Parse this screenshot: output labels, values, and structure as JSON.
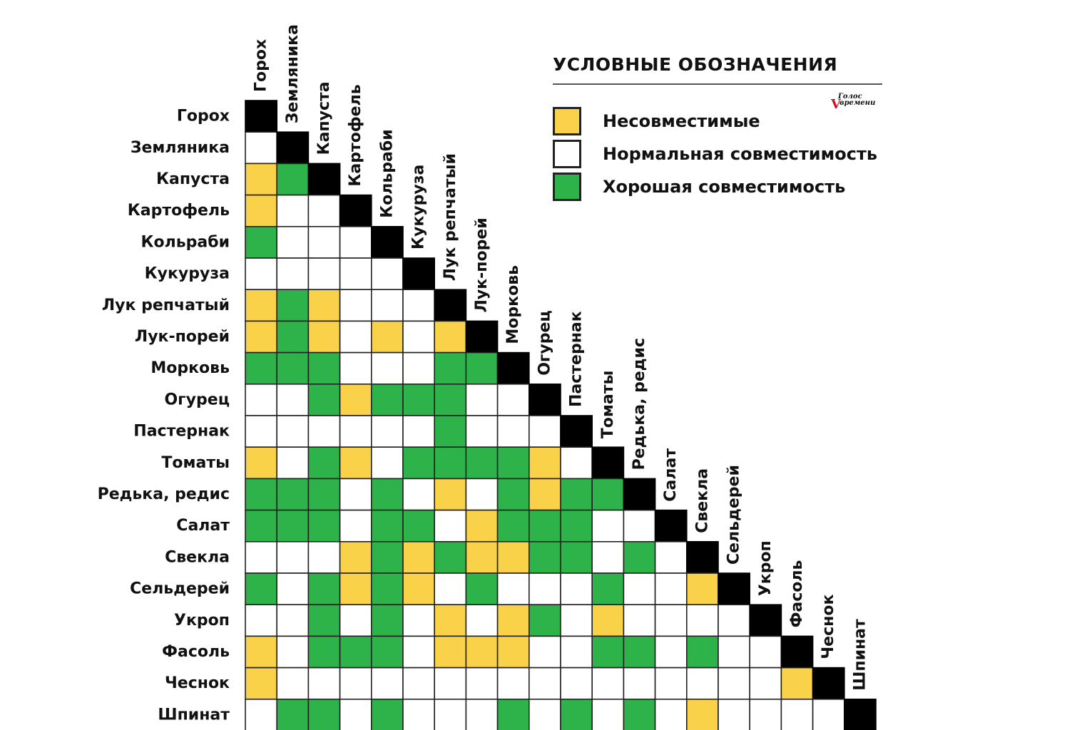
{
  "legend": {
    "title": "УСЛОВНЫЕ ОБОЗНАЧЕНИЯ",
    "items": [
      {
        "code": 1,
        "label": "Несовместимые",
        "color": "#f9d24a"
      },
      {
        "code": 0,
        "label": "Нормальная совместимость",
        "color": "#ffffff"
      },
      {
        "code": 2,
        "label": "Хорошая совместимость",
        "color": "#2db34a"
      }
    ]
  },
  "logo": {
    "line1": "Голос",
    "line2": "времени"
  },
  "chart_data": {
    "type": "heatmap",
    "title": "",
    "crops": [
      "Горох",
      "Земляника",
      "Капуста",
      "Картофель",
      "Кольраби",
      "Кукуруза",
      "Лук репчатый",
      "Лук-порей",
      "Морковь",
      "Огурец",
      "Пастернак",
      "Томаты",
      "Редька, редис",
      "Салат",
      "Свекла",
      "Сельдерей",
      "Укроп",
      "Фасоль",
      "Чеснок",
      "Шпинат"
    ],
    "value_legend": {
      "0": "Нормальная совместимость",
      "1": "Несовместимые",
      "2": "Хорошая совместимость"
    },
    "diagonal_color": "#000000",
    "rows": [
      [],
      [
        0
      ],
      [
        1,
        2
      ],
      [
        1,
        0,
        0
      ],
      [
        2,
        0,
        0,
        0
      ],
      [
        0,
        0,
        0,
        0,
        0
      ],
      [
        1,
        2,
        1,
        0,
        0,
        0
      ],
      [
        1,
        2,
        1,
        0,
        1,
        0,
        1
      ],
      [
        2,
        2,
        2,
        0,
        0,
        0,
        2,
        2
      ],
      [
        0,
        0,
        2,
        1,
        2,
        2,
        2,
        0,
        0
      ],
      [
        0,
        0,
        0,
        0,
        0,
        0,
        2,
        0,
        0,
        0
      ],
      [
        1,
        0,
        2,
        1,
        0,
        2,
        2,
        2,
        2,
        1,
        0
      ],
      [
        2,
        2,
        2,
        0,
        2,
        0,
        1,
        0,
        2,
        1,
        2,
        2
      ],
      [
        2,
        2,
        2,
        0,
        2,
        2,
        0,
        1,
        2,
        2,
        2,
        0,
        0
      ],
      [
        0,
        0,
        0,
        1,
        2,
        1,
        2,
        1,
        1,
        2,
        2,
        0,
        2,
        0
      ],
      [
        2,
        0,
        2,
        1,
        2,
        1,
        0,
        2,
        0,
        0,
        0,
        2,
        0,
        0,
        1
      ],
      [
        0,
        0,
        2,
        0,
        2,
        0,
        1,
        0,
        1,
        2,
        0,
        1,
        0,
        0,
        0,
        0
      ],
      [
        1,
        0,
        2,
        2,
        2,
        0,
        1,
        1,
        1,
        0,
        0,
        2,
        2,
        0,
        2,
        0,
        0
      ],
      [
        1,
        0,
        0,
        0,
        0,
        0,
        0,
        0,
        0,
        0,
        0,
        0,
        0,
        0,
        0,
        0,
        0,
        1
      ],
      [
        0,
        2,
        2,
        0,
        2,
        0,
        0,
        0,
        2,
        0,
        2,
        0,
        2,
        0,
        1,
        0,
        0,
        0,
        0
      ]
    ]
  }
}
